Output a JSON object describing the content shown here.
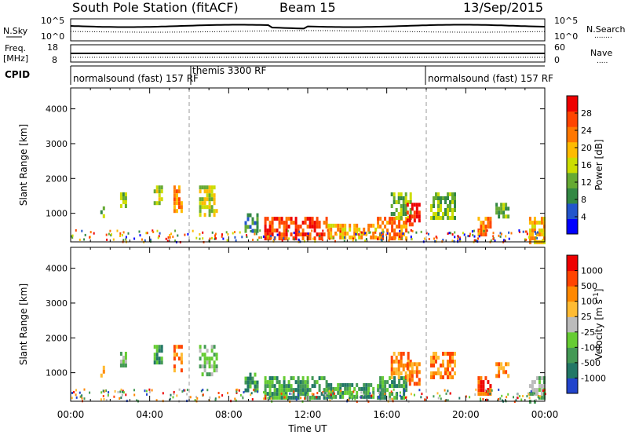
{
  "header": {
    "station": "South Pole Station (fitACF)",
    "beam": "Beam 15",
    "date": "13/Sep/2015"
  },
  "noise_panel": {
    "left_label": "N.Sky",
    "left_ticks": [
      "10^5",
      "10^0"
    ],
    "right_label": "N.Search",
    "right_ticks": [
      "10^5",
      "10^0"
    ],
    "right_legend_line": "........"
  },
  "freq_panel": {
    "left_label_1": "Freq.",
    "left_label_2": "[MHz]",
    "left_ticks": [
      "18",
      "8"
    ],
    "right_label": "Nave",
    "right_ticks": [
      "60",
      "0"
    ],
    "right_legend_line": "....."
  },
  "cpid_panel": {
    "label": "CPID",
    "segments": [
      {
        "name": "normalsound (fast) 157 RF",
        "start_h": 0,
        "end_h": 6
      },
      {
        "name": "themis 3300 RF",
        "start_h": 6,
        "end_h": 18
      },
      {
        "name": "normalsound (fast) 157 RF",
        "start_h": 18,
        "end_h": 24
      }
    ]
  },
  "x_axis": {
    "label": "Time UT",
    "ticks": [
      "00:00",
      "04:00",
      "08:00",
      "12:00",
      "16:00",
      "20:00",
      "00:00"
    ]
  },
  "chart_data": [
    {
      "type": "heatmap",
      "title": "Power",
      "xlabel": "Time UT",
      "ylabel": "Slant Range [km]",
      "xlim_hours": [
        0,
        24
      ],
      "ylim_km": [
        180,
        4600
      ],
      "y_ticks": [
        "1000",
        "2000",
        "3000",
        "4000"
      ],
      "colorbar_label": "Power [dB]",
      "colorbar_ticks": [
        "4",
        "8",
        "12",
        "16",
        "20",
        "24",
        "28"
      ],
      "colorbar_colors": [
        "#0000ff",
        "#2255cc",
        "#338844",
        "#66aa33",
        "#ccdd00",
        "#ffbb00",
        "#ff7700",
        "#ff4400",
        "#ee0000"
      ],
      "vertical_dashed_lines_h": [
        6,
        18
      ],
      "echo_regions": [
        {
          "t0": 1.5,
          "t1": 1.7,
          "r0": 900,
          "r1": 1200,
          "level": 3
        },
        {
          "t0": 2.5,
          "t1": 2.8,
          "r0": 1200,
          "r1": 1600,
          "level": 3
        },
        {
          "t0": 4.2,
          "t1": 4.6,
          "r0": 1300,
          "r1": 1800,
          "level": 4
        },
        {
          "t0": 5.2,
          "t1": 5.6,
          "r0": 1100,
          "r1": 1800,
          "level": 6
        },
        {
          "t0": 6.5,
          "t1": 7.4,
          "r0": 900,
          "r1": 1800,
          "level": 4
        },
        {
          "t0": 8.8,
          "t1": 9.4,
          "r0": 500,
          "r1": 1000,
          "level": 2
        },
        {
          "t0": 9.8,
          "t1": 13.0,
          "r0": 250,
          "r1": 900,
          "level": 7
        },
        {
          "t0": 13.0,
          "t1": 15.5,
          "r0": 250,
          "r1": 700,
          "level": 5
        },
        {
          "t0": 15.5,
          "t1": 17.0,
          "r0": 300,
          "r1": 900,
          "level": 6
        },
        {
          "t0": 16.2,
          "t1": 17.2,
          "r0": 900,
          "r1": 1600,
          "level": 3
        },
        {
          "t0": 17.0,
          "t1": 17.6,
          "r0": 700,
          "r1": 1300,
          "level": 8
        },
        {
          "t0": 18.2,
          "t1": 19.5,
          "r0": 900,
          "r1": 1600,
          "level": 3
        },
        {
          "t0": 20.6,
          "t1": 21.2,
          "r0": 350,
          "r1": 900,
          "level": 6
        },
        {
          "t0": 21.5,
          "t1": 22.2,
          "r0": 900,
          "r1": 1300,
          "level": 3
        },
        {
          "t0": 23.2,
          "t1": 24.0,
          "r0": 200,
          "r1": 900,
          "level": 5
        }
      ]
    },
    {
      "type": "heatmap",
      "title": "Velocity",
      "xlabel": "Time UT",
      "ylabel": "Slant Range [km]",
      "xlim_hours": [
        0,
        24
      ],
      "ylim_km": [
        180,
        4600
      ],
      "y_ticks": [
        "1000",
        "2000",
        "3000",
        "4000"
      ],
      "colorbar_label": "Velocity [m s",
      "colorbar_label_exponent": "-1",
      "colorbar_label_suffix": "]",
      "colorbar_ticks": [
        "1000",
        "500",
        "100",
        "25",
        "-25",
        "-100",
        "-500",
        "-1000"
      ],
      "colorbar_colors": [
        "#2244cc",
        "#227766",
        "#449955",
        "#66cc33",
        "#bbbbbb",
        "#ffbb33",
        "#ff8800",
        "#ff4400",
        "#ee0000"
      ],
      "vertical_dashed_lines_h": [
        6,
        18
      ],
      "echo_regions": [
        {
          "t0": 1.5,
          "t1": 1.7,
          "r0": 900,
          "r1": 1200,
          "level": 6
        },
        {
          "t0": 2.5,
          "t1": 2.8,
          "r0": 1200,
          "r1": 1600,
          "level": 3
        },
        {
          "t0": 4.2,
          "t1": 4.6,
          "r0": 1300,
          "r1": 1800,
          "level": 2
        },
        {
          "t0": 5.2,
          "t1": 5.6,
          "r0": 1100,
          "r1": 1800,
          "level": 6
        },
        {
          "t0": 6.5,
          "t1": 7.4,
          "r0": 900,
          "r1": 1800,
          "level": 3
        },
        {
          "t0": 8.8,
          "t1": 9.4,
          "r0": 500,
          "r1": 1000,
          "level": 2
        },
        {
          "t0": 9.8,
          "t1": 13.0,
          "r0": 250,
          "r1": 900,
          "level": 2
        },
        {
          "t0": 13.0,
          "t1": 15.5,
          "r0": 250,
          "r1": 700,
          "level": 2
        },
        {
          "t0": 15.5,
          "t1": 17.0,
          "r0": 300,
          "r1": 900,
          "level": 2
        },
        {
          "t0": 16.2,
          "t1": 17.2,
          "r0": 900,
          "r1": 1600,
          "level": 6
        },
        {
          "t0": 17.0,
          "t1": 17.6,
          "r0": 700,
          "r1": 1300,
          "level": 6
        },
        {
          "t0": 18.2,
          "t1": 19.5,
          "r0": 900,
          "r1": 1600,
          "level": 6
        },
        {
          "t0": 20.6,
          "t1": 21.2,
          "r0": 350,
          "r1": 900,
          "level": 7
        },
        {
          "t0": 21.5,
          "t1": 22.2,
          "r0": 900,
          "r1": 1300,
          "level": 6
        },
        {
          "t0": 23.2,
          "t1": 24.0,
          "r0": 200,
          "r1": 900,
          "level": 3
        }
      ]
    }
  ]
}
